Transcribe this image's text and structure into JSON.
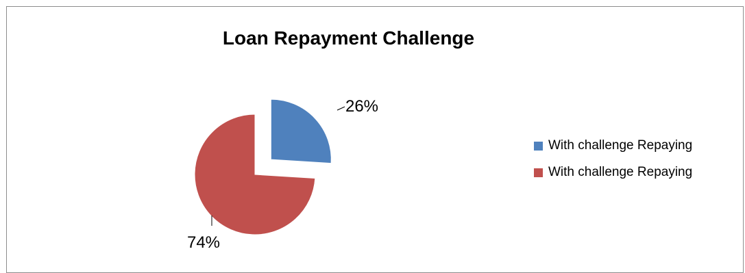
{
  "chart_data": {
    "type": "pie",
    "title": "Loan Repayment Challenge",
    "slices": [
      {
        "label": "With challenge Repaying",
        "value": 26,
        "data_label": "26%",
        "color": "#4F81BD",
        "exploded": true
      },
      {
        "label": "With challenge Repaying",
        "value": 74,
        "data_label": "74%",
        "color": "#C0504D",
        "exploded": false
      }
    ],
    "legend_position": "right"
  }
}
